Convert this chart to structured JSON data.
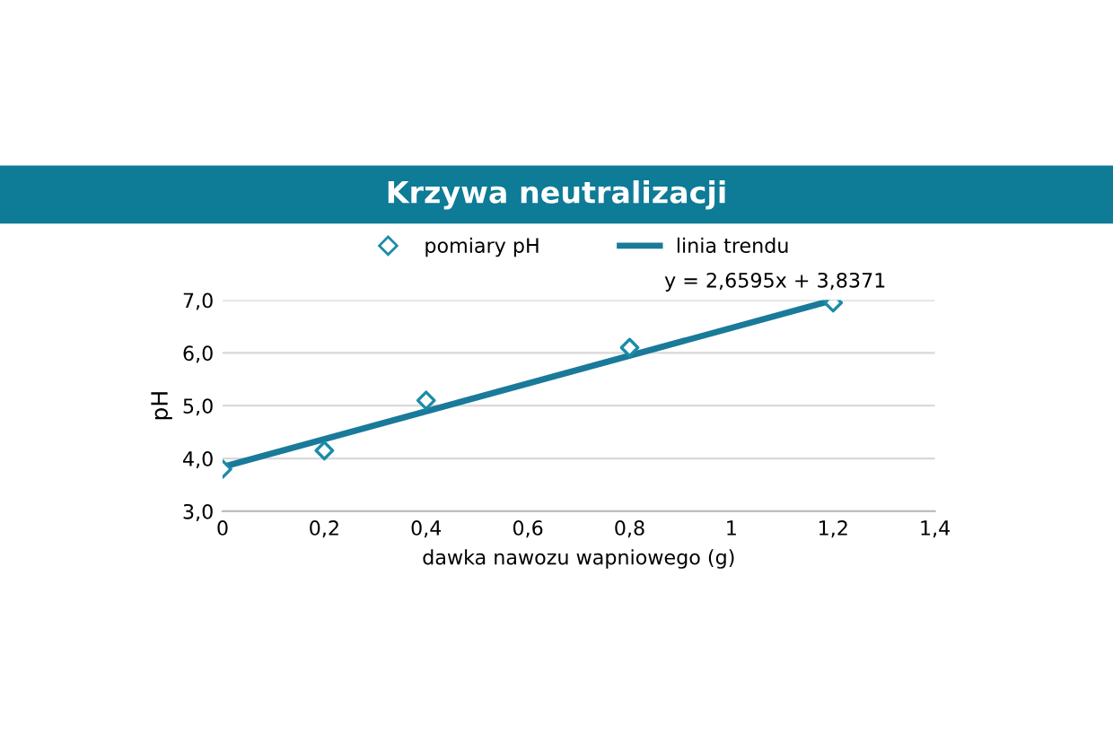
{
  "chart_data": {
    "type": "scatter",
    "title": "Krzywa neutralizacji",
    "xlabel": "dawka nawozu wapniowego (g)",
    "ylabel": "pH",
    "x": [
      0,
      0.2,
      0.4,
      0.8,
      1.2
    ],
    "series": [
      {
        "name": "pomiary pH",
        "color": "#1a8ca8",
        "marker": "diamond",
        "values": [
          3.8,
          4.15,
          5.1,
          6.1,
          6.95
        ]
      },
      {
        "name": "linia trendu",
        "type": "line",
        "color": "#1a7a9a",
        "x": [
          0,
          1.2
        ],
        "values": [
          3.84,
          7.0
        ]
      }
    ],
    "annotations": [
      "y = 2,6595x + 3,8371"
    ],
    "xlim": [
      0,
      1.4
    ],
    "ylim": [
      3.0,
      7.0
    ],
    "xticks": [
      {
        "value": 0,
        "label": "0"
      },
      {
        "value": 0.2,
        "label": "0,2"
      },
      {
        "value": 0.4,
        "label": "0,4"
      },
      {
        "value": 0.6,
        "label": "0,6"
      },
      {
        "value": 0.8,
        "label": "0,8"
      },
      {
        "value": 1,
        "label": "1"
      },
      {
        "value": 1.2,
        "label": "1,2"
      },
      {
        "value": 1.4,
        "label": "1,4"
      }
    ],
    "yticks": [
      {
        "value": 3,
        "label": "3,0"
      },
      {
        "value": 4,
        "label": "4,0"
      },
      {
        "value": 5,
        "label": "5,0"
      },
      {
        "value": 6,
        "label": "6,0"
      },
      {
        "value": 7,
        "label": "7,0"
      }
    ],
    "grid": "y",
    "legend": "top"
  }
}
